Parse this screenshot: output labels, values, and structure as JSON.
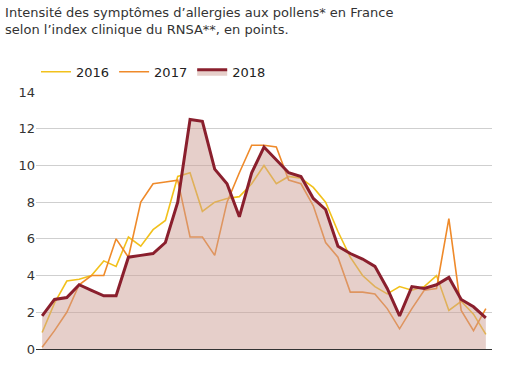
{
  "chart_data": {
    "type": "line",
    "title": "Intensité des symptômes d’allergies aux pollens* en France selon l’index clinique du RNSA**, en points.",
    "categories": [
      null,
      null,
      null,
      null,
      null,
      null,
      null,
      null,
      null,
      null,
      null,
      null,
      null,
      null,
      null,
      null,
      null,
      null,
      null,
      null,
      null,
      null,
      null,
      null,
      null,
      null,
      null,
      null,
      null,
      null,
      null,
      null,
      null,
      null,
      null,
      null,
      null
    ],
    "series": [
      {
        "name": "2016",
        "color": "#f2c11c",
        "values": [
          0.9,
          2.5,
          3.7,
          3.8,
          4.0,
          4.8,
          4.5,
          6.1,
          5.6,
          6.5,
          7.0,
          9.4,
          9.6,
          7.5,
          8.0,
          8.2,
          8.3,
          9.0,
          10.0,
          9.0,
          9.4,
          9.3,
          8.8,
          8.0,
          6.4,
          5.0,
          4.0,
          3.4,
          3.0,
          3.4,
          3.2,
          3.4,
          4.0,
          2.1,
          2.6,
          1.9,
          0.8
        ]
      },
      {
        "name": "2017",
        "color": "#ef8a2a",
        "values": [
          0.1,
          1.0,
          2.0,
          3.5,
          4.0,
          4.0,
          6.0,
          5.0,
          8.0,
          9.0,
          9.1,
          9.2,
          6.1,
          6.1,
          5.1,
          8.0,
          9.6,
          11.1,
          11.1,
          11.0,
          9.2,
          9.0,
          7.8,
          5.8,
          5.0,
          3.1,
          3.1,
          3.0,
          2.2,
          1.1,
          2.2,
          3.2,
          3.3,
          7.1,
          2.1,
          1.0,
          2.2
        ]
      },
      {
        "name": "2018",
        "color": "#8a1f2d",
        "values": [
          1.8,
          2.7,
          2.8,
          3.5,
          3.2,
          2.9,
          2.9,
          5.0,
          5.1,
          5.2,
          5.8,
          8.0,
          12.5,
          12.4,
          9.8,
          9.0,
          7.2,
          9.6,
          11.0,
          10.3,
          9.6,
          9.4,
          8.2,
          7.6,
          5.6,
          5.2,
          4.9,
          4.5,
          3.3,
          1.8,
          3.4,
          3.3,
          3.5,
          3.9,
          2.7,
          2.3,
          1.7
        ]
      }
    ],
    "ylim": [
      0,
      14
    ],
    "yticks": [
      0,
      2,
      4,
      6,
      8,
      10,
      12,
      14
    ],
    "grid": true,
    "legend": "top left",
    "tick_labels": "y"
  }
}
